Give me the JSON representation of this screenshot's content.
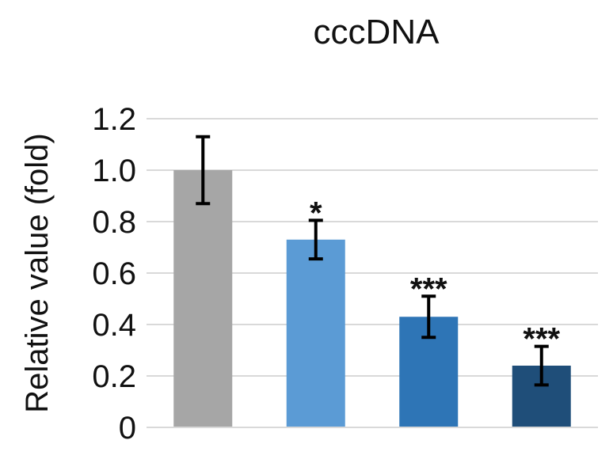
{
  "chart_data": {
    "type": "bar",
    "title": "cccDNA",
    "ylabel": "Relative value (fold)",
    "xlabel": "",
    "ylim": [
      0,
      1.2
    ],
    "yticks": [
      "0",
      "0.2",
      "0.4",
      "0.6",
      "0.8",
      "1.0",
      "1.2"
    ],
    "grid": true,
    "categories": [
      "",
      "",
      "",
      ""
    ],
    "values": [
      1.0,
      0.73,
      0.43,
      0.24
    ],
    "errors": [
      0.13,
      0.075,
      0.08,
      0.075
    ],
    "significance": [
      "",
      "*",
      "***",
      "***"
    ],
    "colors": [
      "#a6a6a6",
      "#5b9bd5",
      "#2e75b6",
      "#1f4e79"
    ]
  }
}
